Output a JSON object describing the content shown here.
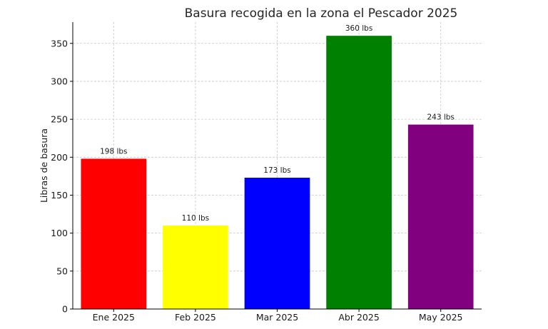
{
  "chart_data": {
    "type": "bar",
    "title": "Basura recogida en la zona el Pescador 2025",
    "xlabel": "",
    "ylabel": "Libras de basura",
    "categories": [
      "Ene 2025",
      "Feb 2025",
      "Mar 2025",
      "Abr 2025",
      "May 2025"
    ],
    "values": [
      198,
      110,
      173,
      360,
      243
    ],
    "data_labels": [
      "198 lbs",
      "110 lbs",
      "173 lbs",
      "360 lbs",
      "243 lbs"
    ],
    "colors": [
      "#ff0000",
      "#ffff00",
      "#0000ff",
      "#008000",
      "#800080"
    ],
    "ylim": [
      0,
      378
    ],
    "yticks": [
      0,
      50,
      100,
      150,
      200,
      250,
      300,
      350
    ],
    "grid": true,
    "legend": "none"
  }
}
